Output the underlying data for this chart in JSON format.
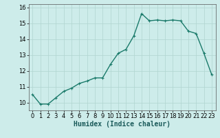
{
  "x": [
    0,
    1,
    2,
    3,
    4,
    5,
    6,
    7,
    8,
    9,
    10,
    11,
    12,
    13,
    14,
    15,
    16,
    17,
    18,
    19,
    20,
    21,
    22,
    23
  ],
  "y": [
    10.5,
    9.9,
    9.9,
    10.3,
    10.7,
    10.9,
    11.2,
    11.35,
    11.55,
    11.55,
    12.4,
    13.1,
    13.35,
    14.2,
    15.6,
    15.15,
    15.2,
    15.15,
    15.2,
    15.15,
    14.5,
    14.35,
    13.1,
    11.75
  ],
  "line_color": "#1a7a6a",
  "marker": "+",
  "marker_size": 3,
  "linewidth": 1.0,
  "bg_color": "#cdecea",
  "grid_color": "#b0d4d0",
  "xlabel": "Humidex (Indice chaleur)",
  "xlabel_fontsize": 7,
  "tick_fontsize": 6,
  "xlim": [
    -0.5,
    23.5
  ],
  "ylim": [
    9.5,
    16.2
  ],
  "yticks": [
    10,
    11,
    12,
    13,
    14,
    15,
    16
  ],
  "xticks": [
    0,
    1,
    2,
    3,
    4,
    5,
    6,
    7,
    8,
    9,
    10,
    11,
    12,
    13,
    14,
    15,
    16,
    17,
    18,
    19,
    20,
    21,
    22,
    23
  ]
}
